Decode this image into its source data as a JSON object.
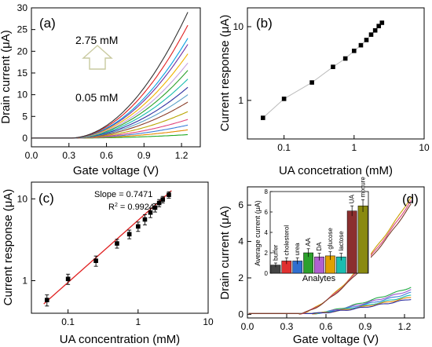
{
  "chart_data": [
    {
      "type": "line",
      "panel_label": "(a)",
      "xlabel": "Gate voltage (V)",
      "ylabel": "Drain current (μA)",
      "xlim": [
        0.0,
        1.35
      ],
      "ylim": [
        -2,
        30
      ],
      "xticks": [
        "0.0",
        "0.3",
        "0.6",
        "0.9",
        "1.2"
      ],
      "yticks": [
        "0",
        "5",
        "10",
        "15",
        "20",
        "25",
        "30"
      ],
      "annotation_top": "2.75 mM",
      "annotation_bottom": "0.05 mM",
      "arrow": "up",
      "threshold_v": 0.3,
      "x_end": 1.25,
      "series_end_values": [
        0.8,
        1.9,
        3.0,
        4.3,
        6.1,
        8.3,
        10.0,
        11.7,
        13.6,
        15.6,
        17.3,
        19.4,
        21.6,
        23.0,
        26.0,
        29.0
      ],
      "series_colors": [
        "#22aa22",
        "#e68a00",
        "#3d7fd9",
        "#e0447c",
        "#b8a600",
        "#8b3f2a",
        "#5aa0c8",
        "#2f2fa0",
        "#1bbdb0",
        "#2ca02c",
        "#c7a0e0",
        "#f0b400",
        "#7030a0",
        "#0aa0e0",
        "#e02020",
        "#333333"
      ]
    },
    {
      "type": "scatter",
      "panel_label": "(b)",
      "xlabel": "UA concetration (mM)",
      "ylabel": "Current response (μA)",
      "xscale": "log",
      "yscale": "log",
      "xlim": [
        0.03,
        10
      ],
      "ylim": [
        0.3,
        18
      ],
      "xticks": [
        0.1,
        1,
        10
      ],
      "xtick_labels": [
        "0.1",
        "1",
        "10"
      ],
      "yticks": [
        1,
        10
      ],
      "ytick_labels": [
        "1",
        "10"
      ],
      "connect_points": true,
      "x": [
        0.05,
        0.1,
        0.25,
        0.5,
        0.75,
        1.0,
        1.25,
        1.5,
        1.75,
        2.0,
        2.25,
        2.5
      ],
      "y": [
        0.58,
        1.05,
        1.75,
        2.85,
        3.7,
        4.7,
        5.6,
        6.6,
        7.8,
        8.9,
        10.2,
        11.3
      ]
    },
    {
      "type": "scatter",
      "panel_label": "(c)",
      "xlabel": "UA concentration (mM)",
      "ylabel": "Current response (μA)",
      "xscale": "log",
      "yscale": "log",
      "xlim": [
        0.03,
        10
      ],
      "ylim": [
        0.4,
        16
      ],
      "xticks": [
        0.1,
        1,
        10
      ],
      "xtick_labels": [
        "0.1",
        "1",
        "10"
      ],
      "yticks": [
        1,
        10
      ],
      "ytick_labels": [
        "1",
        "10"
      ],
      "fit_text_slope": "Slope = 0.7471",
      "fit_text_r2_prefix": "R",
      "fit_text_r2_exp": "2",
      "fit_text_r2_value": " = 0.9924",
      "fit_line": [
        [
          0.045,
          0.52
        ],
        [
          3.0,
          12.6
        ]
      ],
      "x": [
        0.05,
        0.1,
        0.25,
        0.5,
        0.75,
        1.0,
        1.25,
        1.5,
        1.75,
        2.0,
        2.25,
        2.75
      ],
      "y": [
        0.58,
        1.05,
        1.75,
        2.85,
        3.7,
        4.6,
        5.6,
        6.8,
        7.8,
        8.9,
        9.8,
        11.2
      ],
      "yerr": [
        0.09,
        0.15,
        0.25,
        0.35,
        0.45,
        0.6,
        0.8,
        0.9,
        0.9,
        0.9,
        0.9,
        1.0
      ]
    },
    {
      "type": "line",
      "panel_label": "(d)",
      "xlabel": "Gate voltage (V)",
      "ylabel": "Drain current (μA)",
      "xlim": [
        0.0,
        1.35
      ],
      "ylim": [
        -0.2,
        7
      ],
      "xticks": [
        "0.0",
        "0.3",
        "0.6",
        "0.9",
        "1.2"
      ],
      "yticks": [
        "0",
        "2",
        "4",
        "6"
      ],
      "x_end": 1.25,
      "high_curves": {
        "threshold_v": 0.4,
        "end_values": [
          6.4,
          6.2,
          6.0
        ],
        "colors": [
          "#c8a000",
          "#e0447c",
          "#7a3b2a"
        ]
      },
      "low_curves": {
        "threshold_v": 0.5,
        "end_values": [
          1.45,
          1.3,
          1.15,
          1.0,
          0.9,
          0.8
        ],
        "colors": [
          "#22aa44",
          "#9a55d0",
          "#3d7fd9",
          "#1bbdb0",
          "#e68a00",
          "#2f2fa0"
        ]
      }
    },
    {
      "type": "bar",
      "panel_label": "(d) inset",
      "xlabel": "Analytes",
      "ylabel": "Average current (μA)",
      "ylim": [
        0,
        8
      ],
      "yticks": [
        "0",
        "2",
        "4",
        "6",
        "8"
      ],
      "categories": [
        "buffer",
        "cholesterol",
        "urea",
        "AA",
        "DA",
        "glucose",
        "lactose",
        "UA",
        "mixture"
      ],
      "values": [
        0.8,
        1.2,
        1.2,
        2.0,
        1.6,
        1.7,
        1.6,
        6.1,
        6.6
      ],
      "errors": [
        0.2,
        0.3,
        0.3,
        0.4,
        0.35,
        0.4,
        0.35,
        0.5,
        0.6
      ],
      "colors": [
        "#444444",
        "#e03030",
        "#2f6fd0",
        "#2ca02c",
        "#b060d0",
        "#e0a000",
        "#1bbdb0",
        "#8b2f2f",
        "#8a8a10"
      ]
    }
  ]
}
